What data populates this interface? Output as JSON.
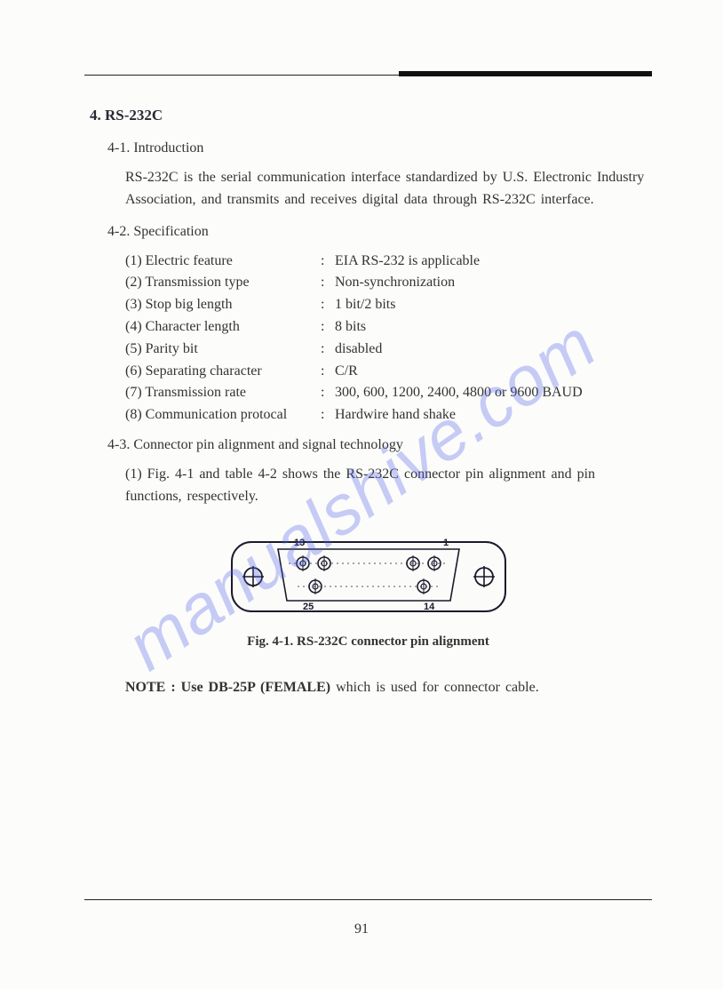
{
  "section": {
    "num": "4.",
    "title": "RS-232C"
  },
  "sub1": {
    "num": "4-1.",
    "title": "Introduction"
  },
  "intro_para": "RS-232C is the serial communication interface standardized by U.S. Electronic Industry Association, and transmits and receives digital data through RS-232C interface.",
  "sub2": {
    "num": "4-2.",
    "title": "Specification"
  },
  "specs": [
    {
      "n": "(1)",
      "label": "Electric feature",
      "val": "EIA RS-232 is applicable"
    },
    {
      "n": "(2)",
      "label": "Transmission type",
      "val": "Non-synchronization"
    },
    {
      "n": "(3)",
      "label": "Stop big length",
      "val": "1 bit/2 bits"
    },
    {
      "n": "(4)",
      "label": "Character length",
      "val": "8 bits"
    },
    {
      "n": "(5)",
      "label": "Parity bit",
      "val": "disabled"
    },
    {
      "n": "(6)",
      "label": "Separating character",
      "val": "C/R"
    },
    {
      "n": "(7)",
      "label": "Transmission rate",
      "val": "300, 600, 1200, 2400, 4800 or 9600 BAUD"
    },
    {
      "n": "(8)",
      "label": "Communication protocal",
      "val": "Hardwire hand shake"
    }
  ],
  "sub3": {
    "num": "4-3.",
    "title": "Connector pin alignment and signal technology"
  },
  "item1": {
    "n": "(1)",
    "text": "Fig. 4-1 and table 4-2 shows the RS-232C connector pin alignment and pin functions, respectively."
  },
  "figure": {
    "pins": {
      "tl": "13",
      "tr": "1",
      "bl": "25",
      "br": "14"
    },
    "caption_prefix": "Fig. 4-1.",
    "caption_rest": "RS-232C connector pin alignment",
    "stroke": "#1a1a2a",
    "fill": "#fbfbfa"
  },
  "note": {
    "label": "NOTE : ",
    "bold": "Use DB-25P (FEMALE)",
    "rest": " which is used for connector cable."
  },
  "watermark": "manualshive.com",
  "page_number": "91"
}
